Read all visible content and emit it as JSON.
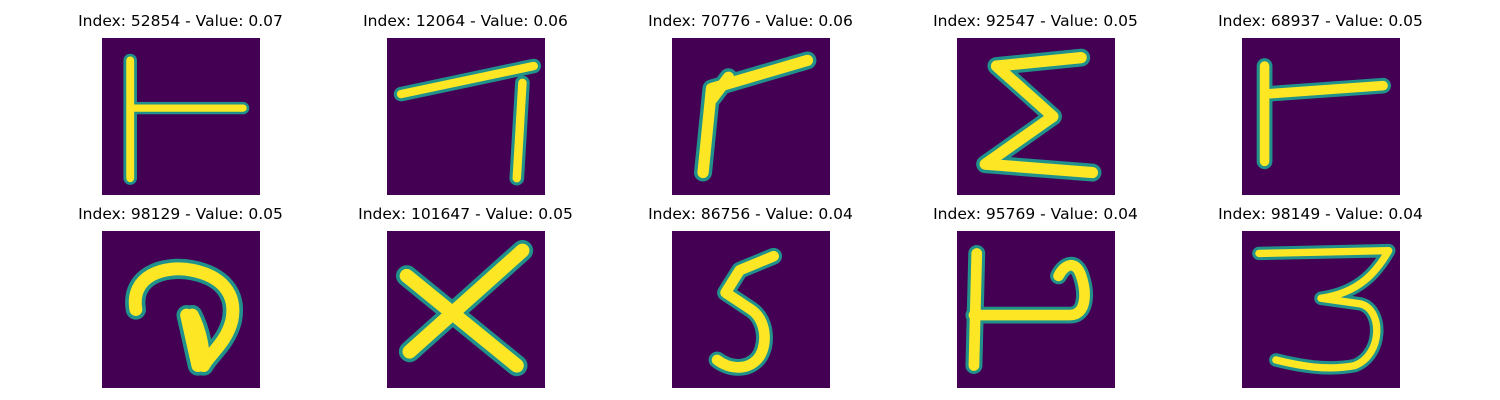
{
  "panels": [
    {
      "title": "Index: 52854 - Value: 0.07"
    },
    {
      "title": "Index: 12064 - Value: 0.06"
    },
    {
      "title": "Index: 70776 - Value: 0.06"
    },
    {
      "title": "Index: 92547 - Value: 0.05"
    },
    {
      "title": "Index: 68937 - Value: 0.05"
    },
    {
      "title": "Index: 98129 - Value: 0.05"
    },
    {
      "title": "Index: 101647 - Value: 0.05"
    },
    {
      "title": "Index: 86756 - Value: 0.04"
    },
    {
      "title": "Index: 95769 - Value: 0.04"
    },
    {
      "title": "Index: 98149 - Value: 0.04"
    }
  ],
  "colors": {
    "background": "#440154",
    "stroke_core": "#fde725",
    "stroke_mid": "#b5de2b",
    "stroke_edge": "#21918c"
  }
}
